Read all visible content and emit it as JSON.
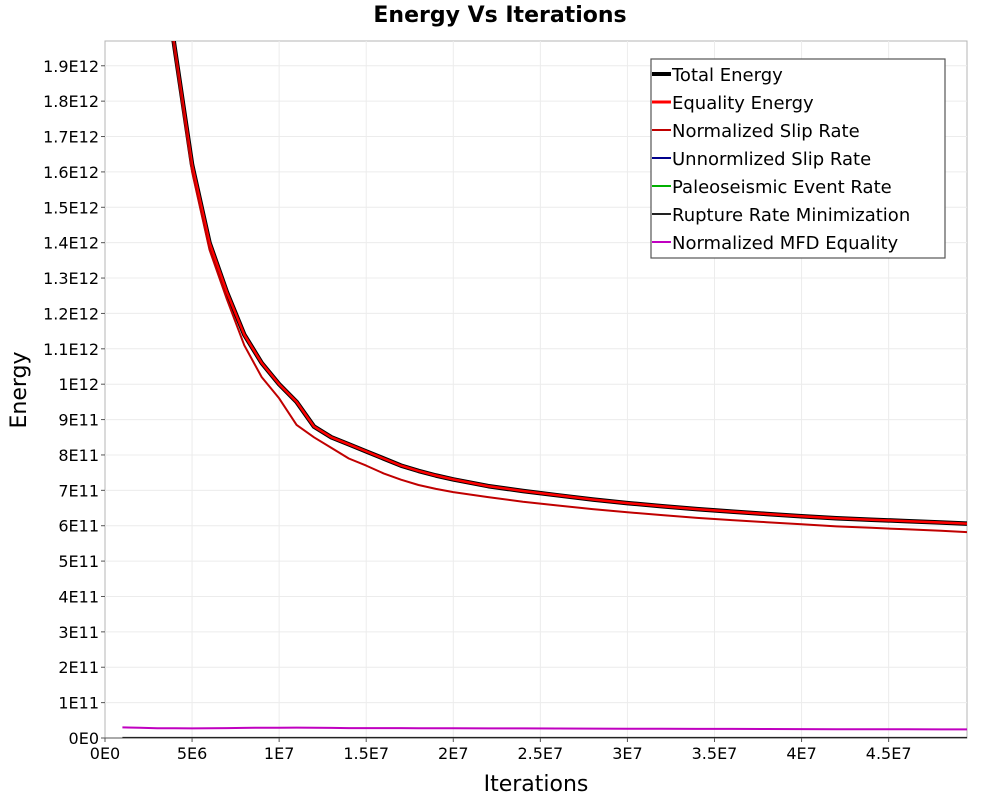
{
  "chart_data": {
    "type": "line",
    "title": "Energy Vs Iterations",
    "xlabel": "Iterations",
    "ylabel": "Energy",
    "xlim": [
      0,
      49500000
    ],
    "ylim": [
      0,
      1970000000000
    ],
    "grid": true,
    "legend_position": "top-right",
    "x_ticks": [
      {
        "value": 0,
        "label": "0E0"
      },
      {
        "value": 5000000,
        "label": "5E6"
      },
      {
        "value": 10000000,
        "label": "1E7"
      },
      {
        "value": 15000000,
        "label": "1.5E7"
      },
      {
        "value": 20000000,
        "label": "2E7"
      },
      {
        "value": 25000000,
        "label": "2.5E7"
      },
      {
        "value": 30000000,
        "label": "3E7"
      },
      {
        "value": 35000000,
        "label": "3.5E7"
      },
      {
        "value": 40000000,
        "label": "4E7"
      },
      {
        "value": 45000000,
        "label": "4.5E7"
      }
    ],
    "y_ticks": [
      {
        "value": 0,
        "label": "0E0"
      },
      {
        "value": 100000000000,
        "label": "1E11"
      },
      {
        "value": 200000000000,
        "label": "2E11"
      },
      {
        "value": 300000000000,
        "label": "3E11"
      },
      {
        "value": 400000000000,
        "label": "4E11"
      },
      {
        "value": 500000000000,
        "label": "5E11"
      },
      {
        "value": 600000000000,
        "label": "6E11"
      },
      {
        "value": 700000000000,
        "label": "7E11"
      },
      {
        "value": 800000000000,
        "label": "8E11"
      },
      {
        "value": 900000000000,
        "label": "9E11"
      },
      {
        "value": 1000000000000,
        "label": "1E12"
      },
      {
        "value": 1100000000000,
        "label": "1.1E12"
      },
      {
        "value": 1200000000000,
        "label": "1.2E12"
      },
      {
        "value": 1300000000000,
        "label": "1.3E12"
      },
      {
        "value": 1400000000000,
        "label": "1.4E12"
      },
      {
        "value": 1500000000000,
        "label": "1.5E12"
      },
      {
        "value": 1600000000000,
        "label": "1.6E12"
      },
      {
        "value": 1700000000000,
        "label": "1.7E12"
      },
      {
        "value": 1800000000000,
        "label": "1.8E12"
      },
      {
        "value": 1900000000000,
        "label": "1.9E12"
      }
    ],
    "x": [
      1000000,
      2000000,
      3000000,
      4000000,
      5000000,
      6000000,
      7000000,
      8000000,
      9000000,
      10000000,
      11000000,
      12000000,
      13000000,
      14000000,
      15000000,
      16000000,
      17000000,
      18000000,
      19000000,
      20000000,
      22000000,
      24000000,
      26000000,
      28000000,
      30000000,
      32000000,
      34000000,
      36000000,
      38000000,
      40000000,
      42000000,
      44000000,
      46000000,
      48000000,
      49500000
    ],
    "series": [
      {
        "name": "Total Energy",
        "color": "#000000",
        "values": [
          null,
          null,
          2300000000000,
          1950000000000,
          1620000000000,
          1400000000000,
          1260000000000,
          1140000000000,
          1060000000000,
          1000000000000,
          950000000000,
          880000000000,
          850000000000,
          830000000000,
          810000000000,
          790000000000,
          770000000000,
          755000000000,
          742000000000,
          731000000000,
          712000000000,
          698000000000,
          686000000000,
          674000000000,
          664000000000,
          655000000000,
          647000000000,
          640000000000,
          633000000000,
          627000000000,
          621000000000,
          617000000000,
          613000000000,
          609000000000,
          606000000000
        ]
      },
      {
        "name": "Equality Energy",
        "color": "#ff0000",
        "values": [
          null,
          null,
          2300000000000,
          1950000000000,
          1620000000000,
          1400000000000,
          1260000000000,
          1140000000000,
          1060000000000,
          1000000000000,
          950000000000,
          880000000000,
          850000000000,
          830000000000,
          810000000000,
          790000000000,
          770000000000,
          755000000000,
          742000000000,
          731000000000,
          712000000000,
          698000000000,
          686000000000,
          674000000000,
          664000000000,
          655000000000,
          647000000000,
          640000000000,
          633000000000,
          627000000000,
          621000000000,
          617000000000,
          613000000000,
          609000000000,
          606000000000
        ]
      },
      {
        "name": "Normalized Slip Rate",
        "color": "#c00000",
        "values": [
          null,
          null,
          2300000000000,
          1940000000000,
          1600000000000,
          1380000000000,
          1240000000000,
          1110000000000,
          1020000000000,
          960000000000,
          885000000000,
          850000000000,
          820000000000,
          790000000000,
          770000000000,
          748000000000,
          730000000000,
          715000000000,
          704000000000,
          695000000000,
          681000000000,
          668000000000,
          657000000000,
          647000000000,
          638000000000,
          630000000000,
          622000000000,
          616000000000,
          610000000000,
          604000000000,
          598000000000,
          594000000000,
          590000000000,
          586000000000,
          582000000000
        ]
      },
      {
        "name": "Unnormlized Slip Rate",
        "color": "#00008b",
        "values": [
          null,
          0,
          0,
          0,
          0,
          0,
          0,
          0,
          0,
          0,
          0,
          0,
          0,
          0,
          0,
          0,
          0,
          0,
          0,
          0,
          0,
          0,
          0,
          0,
          0,
          0,
          0,
          0,
          0,
          0,
          0,
          0,
          0,
          0,
          0
        ]
      },
      {
        "name": "Paleoseismic Event Rate",
        "color": "#00b000",
        "values": [
          null,
          0,
          0,
          0,
          0,
          0,
          0,
          0,
          0,
          0,
          0,
          0,
          0,
          0,
          0,
          0,
          0,
          0,
          0,
          0,
          0,
          0,
          0,
          0,
          0,
          0,
          0,
          0,
          0,
          0,
          0,
          0,
          0,
          0,
          0
        ]
      },
      {
        "name": "Rupture Rate Minimization",
        "color": "#222222",
        "values": [
          200000000,
          200000000,
          200000000,
          200000000,
          200000000,
          200000000,
          200000000,
          200000000,
          200000000,
          200000000,
          200000000,
          200000000,
          200000000,
          200000000,
          200000000,
          200000000,
          200000000,
          200000000,
          200000000,
          200000000,
          200000000,
          200000000,
          200000000,
          200000000,
          200000000,
          200000000,
          200000000,
          200000000,
          200000000,
          200000000,
          200000000,
          200000000,
          200000000,
          200000000,
          200000000
        ]
      },
      {
        "name": "Normalized MFD Equality",
        "color": "#c000c0",
        "values": [
          30000000000,
          29000000000,
          27500000000,
          27500000000,
          27000000000,
          27500000000,
          28000000000,
          28500000000,
          29000000000,
          29000000000,
          29500000000,
          29000000000,
          28500000000,
          28000000000,
          28000000000,
          28000000000,
          28000000000,
          27800000000,
          27600000000,
          27500000000,
          27200000000,
          27000000000,
          26800000000,
          26500000000,
          26200000000,
          26000000000,
          25800000000,
          25600000000,
          25400000000,
          25200000000,
          25000000000,
          24800000000,
          24600000000,
          24400000000,
          24300000000
        ]
      }
    ]
  }
}
